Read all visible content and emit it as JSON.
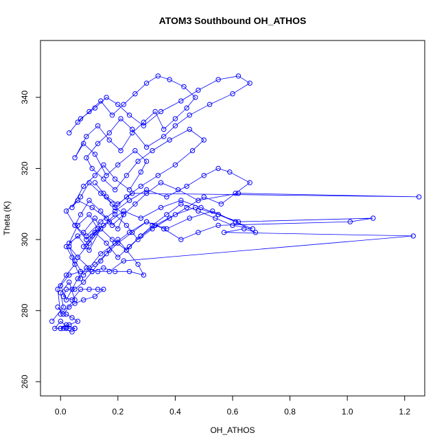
{
  "chart_data": {
    "type": "scatter",
    "title": "ATOM3 Southbound OH_ATHOS",
    "xlabel": "OH_ATHOS",
    "ylabel": "Theta (K)",
    "xlim": [
      -0.07,
      1.27
    ],
    "ylim": [
      256,
      356
    ],
    "xticks": [
      0.0,
      0.2,
      0.4,
      0.6,
      0.8,
      1.0,
      1.2
    ],
    "xtick_labels": [
      "0.0",
      "0.2",
      "0.4",
      "0.6",
      "0.8",
      "1.0",
      "1.2"
    ],
    "yticks": [
      260,
      280,
      300,
      320,
      340
    ],
    "ytick_labels": [
      "260",
      "280",
      "300",
      "320",
      "340"
    ],
    "marker": "open-circle",
    "connected": true,
    "color": "#0000ff",
    "grid": false,
    "series": [
      {
        "x": [
          -0.03,
          0.01,
          0.0,
          0.03,
          0.05,
          0.0,
          -0.01,
          0.02,
          0.05,
          0.07,
          0.04,
          0.02,
          0.06,
          0.1,
          0.14,
          0.12,
          0.08,
          0.03,
          0.06,
          0.1,
          0.13,
          0.09,
          0.05,
          0.02,
          0.06,
          0.11,
          0.16,
          0.2,
          0.22,
          0.18,
          0.14,
          0.1,
          0.07,
          0.04,
          0.08,
          0.12,
          0.15,
          0.19,
          0.24,
          0.28,
          0.3,
          0.26,
          0.2,
          0.16,
          0.12,
          0.08,
          0.05,
          0.09,
          0.13,
          0.17,
          0.21,
          0.25,
          0.29,
          0.33,
          0.36,
          0.4,
          0.44,
          0.47,
          0.43,
          0.38,
          0.34,
          0.3,
          0.26,
          0.22,
          0.18,
          0.14,
          0.1,
          0.06,
          0.03,
          0.07,
          0.12,
          0.16,
          0.2,
          0.24,
          0.29,
          0.35,
          0.42,
          0.48,
          0.55,
          0.62,
          0.66,
          0.6,
          0.52,
          0.45,
          0.4,
          0.36,
          0.3,
          0.25,
          0.21,
          0.17,
          0.13,
          0.09,
          0.11,
          0.15,
          0.19,
          0.23,
          0.27,
          0.32,
          0.38,
          0.45,
          0.5,
          0.46,
          0.4,
          0.34,
          0.28,
          0.23,
          0.19,
          0.15,
          0.12,
          0.16,
          0.2,
          0.25,
          1.25,
          0.62,
          0.48,
          0.41,
          0.35,
          0.3,
          0.26,
          0.22,
          0.18,
          0.14,
          0.1,
          0.07,
          0.05,
          0.09,
          0.14,
          0.19,
          0.24,
          0.3,
          0.37,
          0.44,
          0.5,
          0.55,
          0.59,
          0.66,
          0.61,
          0.56,
          0.5,
          0.44,
          0.38,
          0.32,
          0.27,
          0.23,
          0.19,
          0.15,
          0.11,
          0.08,
          0.12,
          0.17,
          0.22,
          0.28,
          0.35,
          0.42,
          0.49,
          0.55,
          0.61,
          0.67,
          0.6,
          0.54,
          0.48,
          0.42,
          0.37,
          0.32,
          0.28,
          0.24,
          0.2,
          0.16,
          0.12,
          0.09,
          0.06,
          0.1,
          0.14,
          0.18,
          0.23,
          0.28,
          0.33,
          0.4,
          0.47,
          0.55,
          0.62,
          1.09,
          1.01,
          0.55,
          0.48,
          0.42,
          0.36,
          0.3,
          0.25,
          0.2,
          0.16,
          0.12,
          0.08,
          0.05,
          0.03,
          0.06,
          0.1,
          0.14,
          0.19,
          0.24,
          0.3,
          0.37,
          0.45,
          0.53,
          0.61,
          0.68,
          0.64,
          0.57,
          1.23,
          0.22,
          0.17,
          0.13,
          0.09,
          0.06,
          0.04,
          0.02,
          0.0,
          0.03,
          0.07,
          0.11,
          0.15,
          0.19,
          0.24,
          0.29,
          0.27,
          0.23,
          0.2,
          0.17,
          0.14,
          0.11,
          0.08,
          0.05,
          0.02,
          0.01,
          0.04,
          0.07,
          0.1,
          0.13,
          0.15,
          0.12,
          0.08,
          0.05,
          0.03,
          0.01,
          -0.01,
          0.02,
          0.04,
          0.06,
          0.03,
          0.0,
          0.02,
          0.05,
          0.04,
          0.01,
          -0.02,
          0.0,
          0.03,
          0.05,
          0.02,
          0.0
        ],
        "y": [
          277,
          281,
          285,
          288,
          283,
          279,
          286,
          290,
          293,
          289,
          295,
          298,
          301,
          297,
          303,
          306,
          302,
          299,
          304,
          307,
          303,
          300,
          304,
          308,
          311,
          309,
          306,
          303,
          307,
          310,
          313,
          316,
          312,
          309,
          315,
          318,
          321,
          317,
          314,
          319,
          322,
          325,
          321,
          318,
          324,
          327,
          323,
          329,
          332,
          328,
          325,
          330,
          333,
          336,
          331,
          334,
          337,
          340,
          343,
          345,
          346,
          344,
          341,
          338,
          335,
          339,
          336,
          333,
          330,
          334,
          337,
          340,
          338,
          335,
          332,
          336,
          339,
          342,
          345,
          346,
          344,
          341,
          338,
          335,
          332,
          329,
          326,
          331,
          334,
          330,
          327,
          323,
          320,
          317,
          314,
          318,
          322,
          325,
          328,
          331,
          328,
          325,
          321,
          318,
          315,
          312,
          309,
          313,
          316,
          312,
          310,
          313,
          312,
          313,
          311,
          314,
          316,
          313,
          310,
          307,
          304,
          308,
          311,
          307,
          304,
          301,
          305,
          308,
          311,
          314,
          312,
          315,
          318,
          320,
          319,
          316,
          313,
          310,
          312,
          309,
          306,
          303,
          300,
          304,
          307,
          304,
          301,
          298,
          302,
          305,
          308,
          306,
          309,
          311,
          309,
          307,
          305,
          303,
          304,
          306,
          308,
          310,
          307,
          304,
          301,
          298,
          295,
          299,
          302,
          298,
          295,
          299,
          303,
          300,
          297,
          301,
          304,
          307,
          309,
          307,
          305,
          306,
          305,
          304,
          302,
          300,
          303,
          305,
          302,
          299,
          296,
          293,
          290,
          294,
          298,
          295,
          292,
          296,
          299,
          302,
          305,
          303,
          306,
          308,
          305,
          302,
          303,
          302,
          301,
          294,
          291,
          291,
          292,
          289,
          286,
          283,
          287,
          290,
          291,
          291,
          292,
          291,
          291,
          290,
          293,
          297,
          300,
          297,
          294,
          291,
          288,
          286,
          286,
          284,
          283,
          286,
          286,
          286,
          286,
          284,
          283,
          282,
          281,
          279,
          281,
          279,
          278,
          277,
          276,
          275,
          276,
          275,
          274,
          275,
          275,
          277,
          275,
          275,
          275,
          275
        ]
      }
    ]
  }
}
